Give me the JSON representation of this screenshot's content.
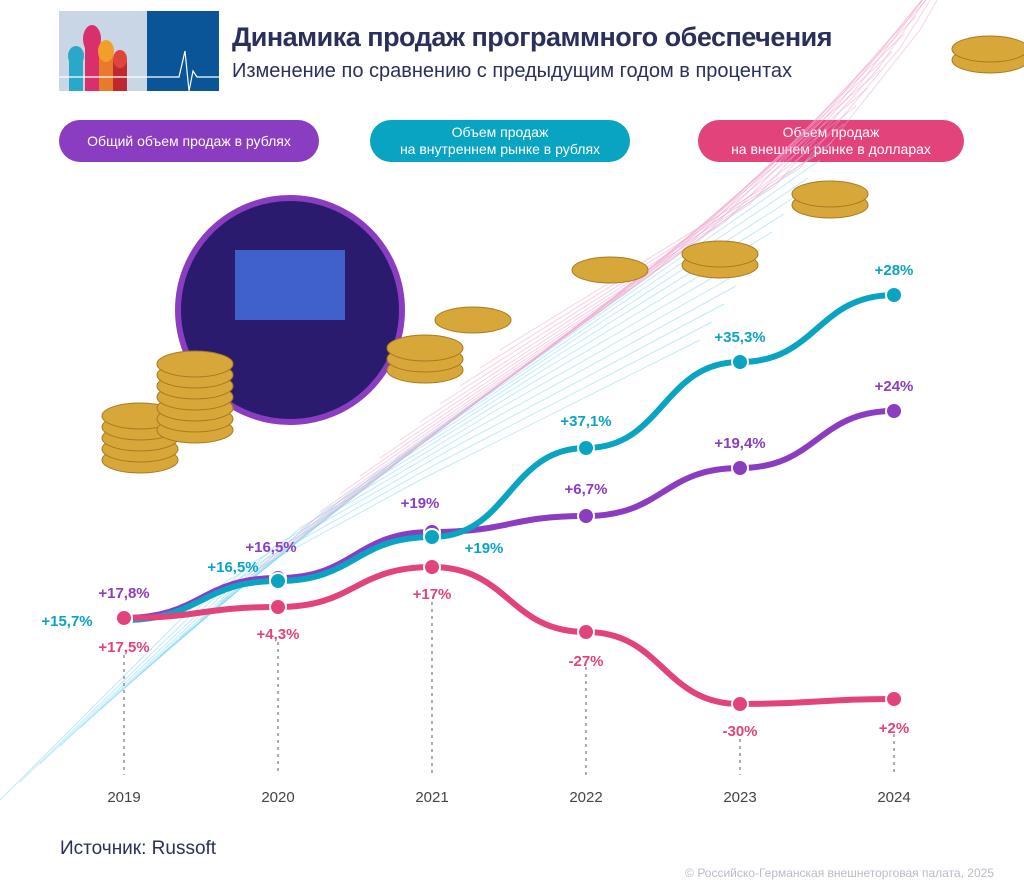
{
  "header": {
    "title": "Динамика продаж программного обеспечения",
    "subtitle": "Изменение по сравнению с предыдущим годом в процентах"
  },
  "footer": {
    "source": "Источник: Russoft",
    "copyright": "© Российско-Германская внешнеторговая палата, 2025"
  },
  "colors": {
    "total": "#8b3dc1",
    "domestic": "#0aa4c3",
    "export": "#e2437b",
    "title": "#2a2f5c"
  },
  "chart_data": {
    "type": "line",
    "title": "Динамика продаж программного обеспечения",
    "subtitle": "Изменение по сравнению с предыдущим годом в процентах",
    "categories": [
      "2019",
      "2020",
      "2021",
      "2022",
      "2023",
      "2024"
    ],
    "legend_placement": "top",
    "grid": false,
    "series": [
      {
        "name": "Общий объем продаж в рублях",
        "color": "#8b3dc1",
        "values": [
          17.8,
          16.5,
          19,
          6.7,
          19.4,
          24
        ],
        "labels": [
          "+17,8%",
          "+16,5%",
          "+19%",
          "+6,7%",
          "+19,4%",
          "+24%"
        ]
      },
      {
        "name": "Объем продаж\nна внутреннем рынке в рублях",
        "color": "#0aa4c3",
        "values": [
          15.7,
          16.5,
          19,
          37.1,
          35.3,
          28
        ],
        "labels": [
          "+15,7%",
          "+16,5%",
          "+19%",
          "+37,1%",
          "+35,3%",
          "+28%"
        ]
      },
      {
        "name": "Объем продаж\nна внешнем рынке в долларах",
        "color": "#e2437b",
        "values": [
          17.5,
          4.3,
          17,
          -27,
          -30,
          2
        ],
        "labels": [
          "+17,5%",
          "+4,3%",
          "+17%",
          "-27%",
          "-30%",
          "+2%"
        ]
      }
    ]
  }
}
